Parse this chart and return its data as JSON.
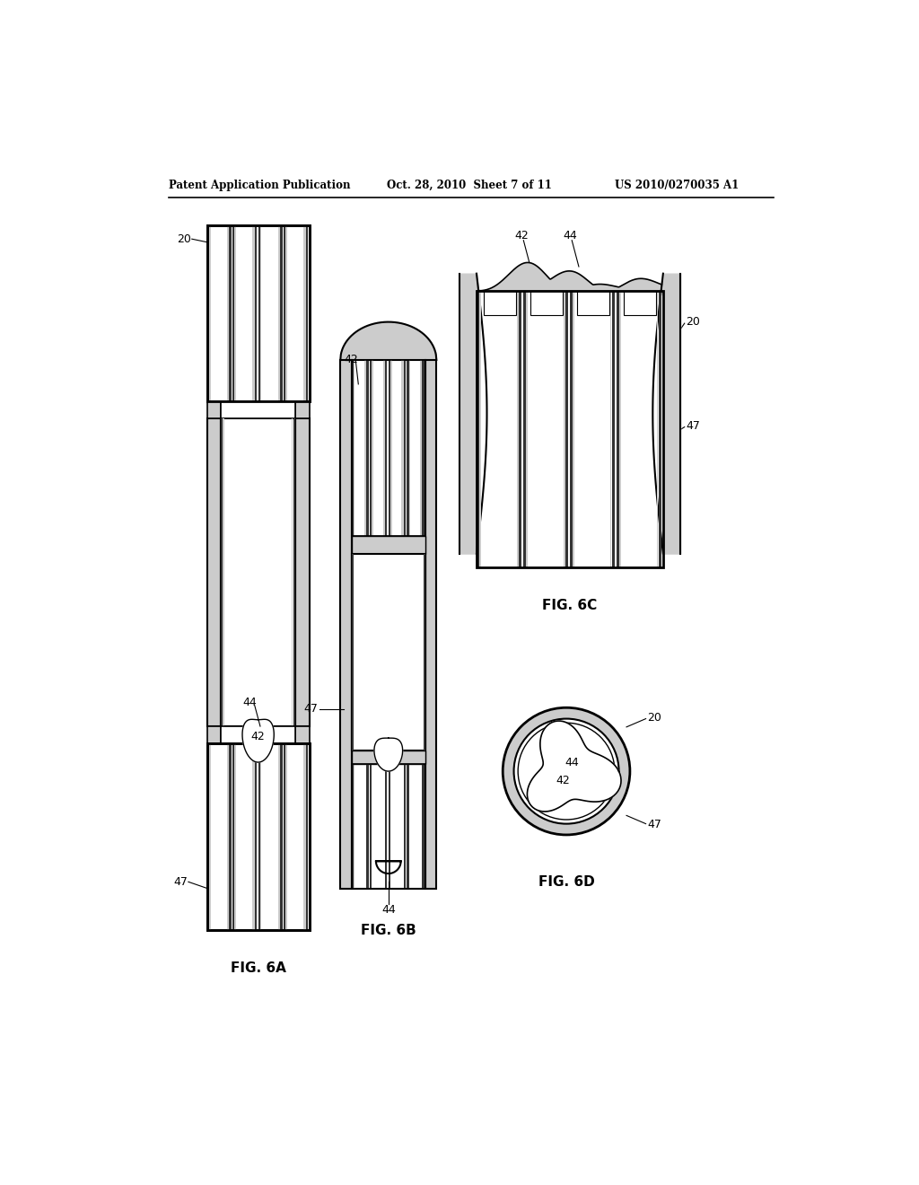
{
  "title_left": "Patent Application Publication",
  "title_mid": "Oct. 28, 2010  Sheet 7 of 11",
  "title_right": "US 2010/0270035 A1",
  "fig6a_label": "FIG. 6A",
  "fig6b_label": "FIG. 6B",
  "fig6c_label": "FIG. 6C",
  "fig6d_label": "FIG. 6D",
  "background": "#ffffff",
  "lc": "#000000",
  "gray_light": "#cccccc",
  "gray_mid": "#888888",
  "gray_dark": "#333333",
  "gray_shadow": "#aaaaaa"
}
